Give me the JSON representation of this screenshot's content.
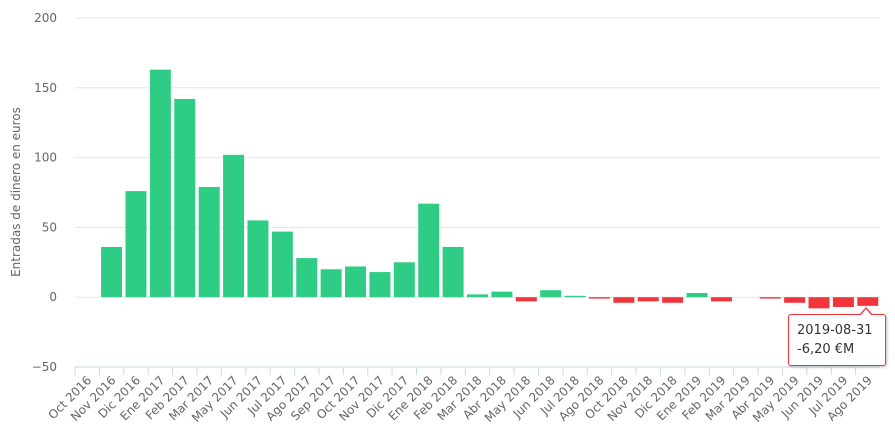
{
  "chart_data": {
    "type": "bar",
    "ylabel": "Entradas de dinero en euros",
    "xlabel": "",
    "ylim": [
      -50,
      200
    ],
    "yticks": [
      -50,
      0,
      50,
      100,
      150,
      200
    ],
    "grid": true,
    "positive_color": "#2ecc85",
    "negative_color": "#f0353d",
    "categories": [
      "Oct 2016",
      "Nov 2016",
      "Dic 2016",
      "Ene 2017",
      "Feb 2017",
      "Mar 2017",
      "May 2017",
      "Jun 2017",
      "Jul 2017",
      "Ago 2017",
      "Sep 2017",
      "Oct 2017",
      "Nov 2017",
      "Dic 2017",
      "Ene 2018",
      "Feb 2018",
      "Mar 2018",
      "Abr 2018",
      "May 2018",
      "Jun 2018",
      "Jul 2018",
      "Ago 2018",
      "Oct 2018",
      "Nov 2018",
      "Dic 2018",
      "Ene 2019",
      "Feb 2019",
      "Mar 2019",
      "Abr 2019",
      "May 2019",
      "Jun 2019",
      "Jul 2019",
      "Ago 2019"
    ],
    "values": [
      0,
      36,
      76,
      163,
      142,
      79,
      102,
      55,
      47,
      28,
      20,
      22,
      18,
      25,
      67,
      36,
      2,
      4,
      -3,
      5,
      1,
      -1,
      -4,
      -3,
      -4,
      3,
      -3,
      0,
      -1,
      -4,
      -8,
      -7,
      -6.2
    ]
  },
  "tooltip": {
    "date": "2019-08-31",
    "value": "-6,20 €M"
  }
}
